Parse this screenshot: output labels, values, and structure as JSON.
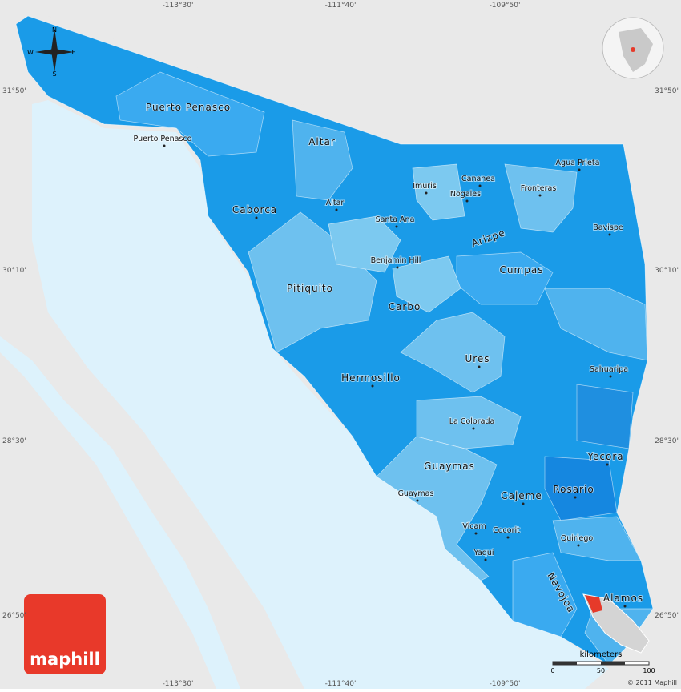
{
  "logo": "maphill",
  "copyright": "© 2011 Maphill",
  "compass": {
    "n": "N",
    "s": "S",
    "e": "E",
    "w": "W"
  },
  "longitudes": [
    "-113°30'",
    "-111°40'",
    "-109°50'"
  ],
  "latitudes": [
    "31°50'",
    "30°10'",
    "28°30'",
    "26°50'"
  ],
  "scale": {
    "label": "kilometers",
    "ticks": [
      0,
      50,
      100
    ]
  },
  "places": [
    {
      "label": "Puerto Penasco"
    },
    {
      "label": "Puerto Penasco"
    },
    {
      "label": "Altar"
    },
    {
      "label": "Altar"
    },
    {
      "label": "Caborca"
    },
    {
      "label": "Imuris"
    },
    {
      "label": "Cananea"
    },
    {
      "label": "Nogales"
    },
    {
      "label": "Agua Prieta"
    },
    {
      "label": "Fronteras"
    },
    {
      "label": "Santa Ana"
    },
    {
      "label": "Arizpe"
    },
    {
      "label": "Bavispe"
    },
    {
      "label": "Benjamin Hill"
    },
    {
      "label": "Cumpas"
    },
    {
      "label": "Pitiquito"
    },
    {
      "label": "Carbo"
    },
    {
      "label": "Ures"
    },
    {
      "label": "Sahuaripa"
    },
    {
      "label": "Hermosillo"
    },
    {
      "label": "La Colorada"
    },
    {
      "label": "Yecora"
    },
    {
      "label": "Guaymas"
    },
    {
      "label": "Guaymas"
    },
    {
      "label": "Cajeme"
    },
    {
      "label": "Rosario"
    },
    {
      "label": "Vicam"
    },
    {
      "label": "Cocorit"
    },
    {
      "label": "Quiriego"
    },
    {
      "label": "Yaqui"
    },
    {
      "label": "Navojoa"
    },
    {
      "label": "Alamos"
    }
  ]
}
